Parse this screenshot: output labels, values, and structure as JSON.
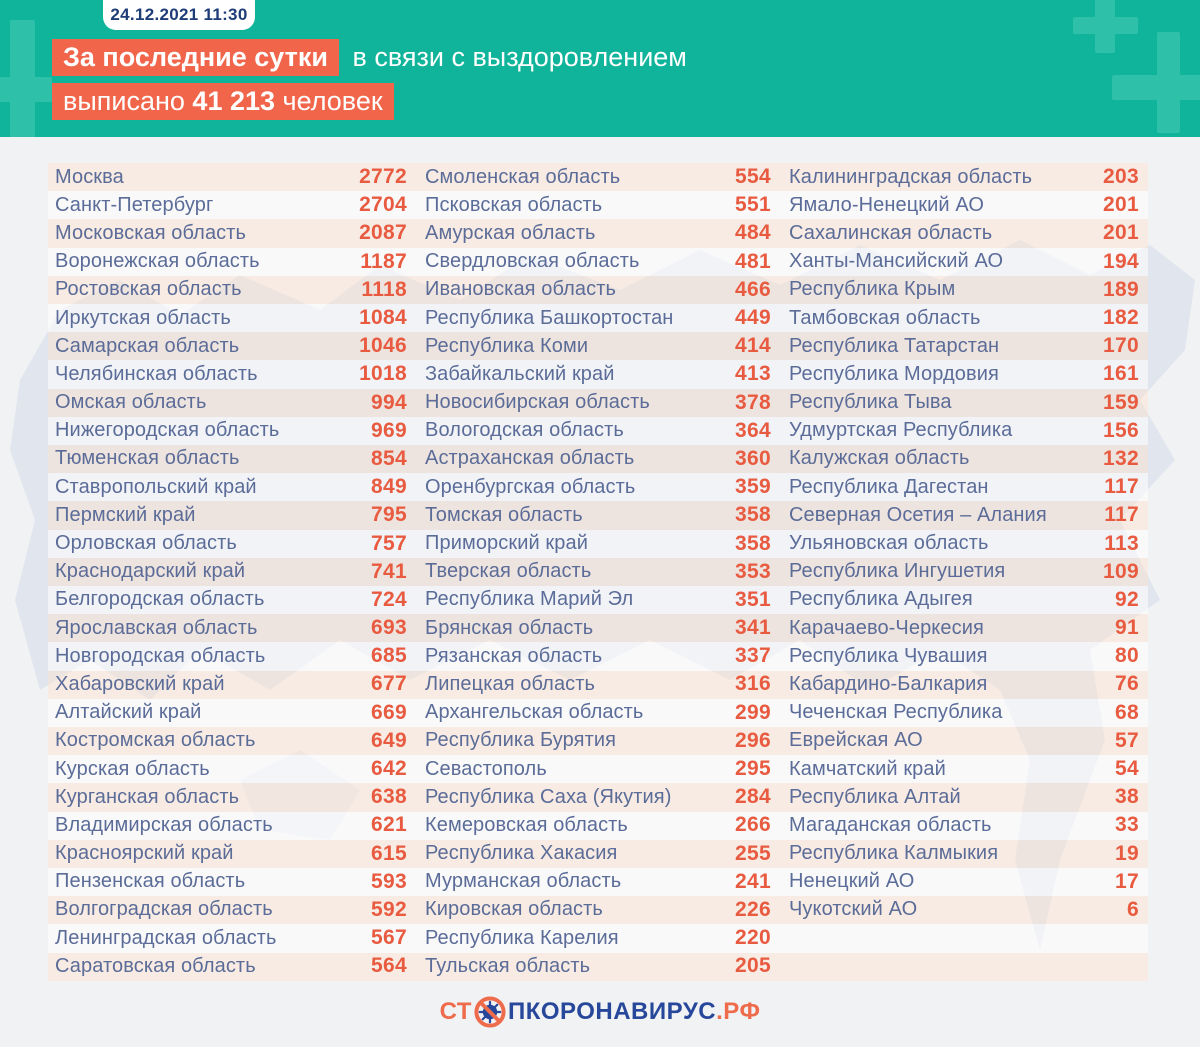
{
  "header": {
    "timestamp": "24.12.2021 11:30",
    "line1_highlight": "За последние сутки",
    "line1_rest": "в связи с выздоровлением",
    "line2_prefix": "выписано",
    "line2_number": "41 213",
    "line2_suffix": "человек"
  },
  "footer": {
    "logo_prefix": "ст",
    "logo_middle": "пкоронавирус",
    "logo_suffix": ".рф"
  },
  "colors": {
    "header_teal": "#0FB49A",
    "plus_teal": "#2EC0A9",
    "highlight_orange": "#F1664B",
    "value_orange": "#E85B40",
    "region_blue": "#5B6C98",
    "date_navy": "#1E3C78",
    "logo_navy": "#27479B",
    "logo_orange": "#EE6B4B",
    "stripe_pink": "#FBEFE9",
    "page_bg": "#F1F2F4"
  },
  "chart_data": {
    "type": "table",
    "title": "За последние сутки в связи с выздоровлением выписано 41 213 человек",
    "timestamp": "24.12.2021 11:30",
    "total_discharged": 41213,
    "groups": [
      [
        [
          "Москва",
          2772
        ],
        [
          "Санкт-Петербург",
          2704
        ],
        [
          "Московская область",
          2087
        ],
        [
          "Воронежская область",
          1187
        ],
        [
          "Ростовская область",
          1118
        ],
        [
          "Иркутская область",
          1084
        ],
        [
          "Самарская область",
          1046
        ],
        [
          "Челябинская область",
          1018
        ],
        [
          "Омская область",
          994
        ],
        [
          "Нижегородская область",
          969
        ],
        [
          "Тюменская область",
          854
        ],
        [
          "Ставропольский край",
          849
        ],
        [
          "Пермский край",
          795
        ],
        [
          "Орловская область",
          757
        ],
        [
          "Краснодарский край",
          741
        ],
        [
          "Белгородская область",
          724
        ],
        [
          "Ярославская область",
          693
        ],
        [
          "Новгородская область",
          685
        ],
        [
          "Хабаровский край",
          677
        ],
        [
          "Алтайский край",
          669
        ],
        [
          "Костромская область",
          649
        ],
        [
          "Курская область",
          642
        ],
        [
          "Курганская область",
          638
        ],
        [
          "Владимирская область",
          621
        ],
        [
          "Красноярский край",
          615
        ],
        [
          "Пензенская область",
          593
        ],
        [
          "Волгоградская область",
          592
        ],
        [
          "Ленинградская область",
          567
        ],
        [
          "Саратовская область",
          564
        ]
      ],
      [
        [
          "Смоленская область",
          554
        ],
        [
          "Псковская область",
          551
        ],
        [
          "Амурская область",
          484
        ],
        [
          "Свердловская область",
          481
        ],
        [
          "Ивановская область",
          466
        ],
        [
          "Республика Башкортостан",
          449
        ],
        [
          "Республика Коми",
          414
        ],
        [
          "Забайкальский край",
          413
        ],
        [
          "Новосибирская область",
          378
        ],
        [
          "Вологодская область",
          364
        ],
        [
          "Астраханская область",
          360
        ],
        [
          "Оренбургская область",
          359
        ],
        [
          "Томская область",
          358
        ],
        [
          "Приморский край",
          358
        ],
        [
          "Тверская область",
          353
        ],
        [
          "Республика Марий Эл",
          351
        ],
        [
          "Брянская область",
          341
        ],
        [
          "Рязанская область",
          337
        ],
        [
          "Липецкая область",
          316
        ],
        [
          "Архангельская область",
          299
        ],
        [
          "Республика Бурятия",
          296
        ],
        [
          "Севастополь",
          295
        ],
        [
          "Республика Саха (Якутия)",
          284
        ],
        [
          "Кемеровская область",
          266
        ],
        [
          "Республика Хакасия",
          255
        ],
        [
          "Мурманская область",
          241
        ],
        [
          "Кировская область",
          226
        ],
        [
          "Республика Карелия",
          220
        ],
        [
          "Тульская область",
          205
        ]
      ],
      [
        [
          "Калининградская область",
          203
        ],
        [
          "Ямало-Ненецкий АО",
          201
        ],
        [
          "Сахалинская область",
          201
        ],
        [
          "Ханты-Мансийский АО",
          194
        ],
        [
          "Республика Крым",
          189
        ],
        [
          "Тамбовская область",
          182
        ],
        [
          "Республика Татарстан",
          170
        ],
        [
          "Республика Мордовия",
          161
        ],
        [
          "Республика Тыва",
          159
        ],
        [
          "Удмуртская Республика",
          156
        ],
        [
          "Калужская область",
          132
        ],
        [
          "Республика Дагестан",
          117
        ],
        [
          "Северная Осетия – Алания",
          117
        ],
        [
          "Ульяновская область",
          113
        ],
        [
          "Республика Ингушетия",
          109
        ],
        [
          "Республика Адыгея",
          92
        ],
        [
          "Карачаево-Черкесия",
          91
        ],
        [
          "Республика Чувашия",
          80
        ],
        [
          "Кабардино-Балкария",
          76
        ],
        [
          "Чеченская Республика",
          68
        ],
        [
          "Еврейская АО",
          57
        ],
        [
          "Камчатский край",
          54
        ],
        [
          "Республика Алтай",
          38
        ],
        [
          "Магаданская область",
          33
        ],
        [
          "Республика Калмыкия",
          19
        ],
        [
          "Ненецкий АО",
          17
        ],
        [
          "Чукотский АО",
          6
        ]
      ]
    ]
  }
}
